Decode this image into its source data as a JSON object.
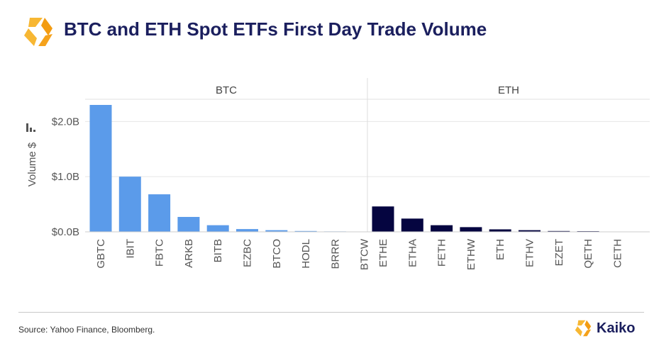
{
  "header": {
    "title": "BTC and ETH Spot ETFs First Day Trade Volume"
  },
  "chart_data": {
    "type": "bar",
    "title": "BTC and ETH Spot ETFs First Day Trade Volume",
    "ylabel": "Volume $",
    "ylim": [
      0,
      2.3
    ],
    "yticks": [
      {
        "value": 0,
        "label": "$0.0B"
      },
      {
        "value": 1,
        "label": "$1.0B"
      },
      {
        "value": 2,
        "label": "$2.0B"
      }
    ],
    "grid": true,
    "panels": [
      {
        "name": "BTC",
        "color": "#5b9bea",
        "categories": [
          "GBTC",
          "IBIT",
          "FBTC",
          "ARKB",
          "BITB",
          "EZBC",
          "BTCO",
          "HODL",
          "BRRR",
          "BTCW"
        ],
        "values": [
          2.3,
          1.0,
          0.68,
          0.27,
          0.12,
          0.05,
          0.03,
          0.015,
          0.008,
          0.004
        ]
      },
      {
        "name": "ETH",
        "color": "#050540",
        "categories": [
          "ETHE",
          "ETHA",
          "FETH",
          "ETHW",
          "ETH",
          "ETHV",
          "EZET",
          "QETH",
          "CETH"
        ],
        "values": [
          0.46,
          0.24,
          0.12,
          0.085,
          0.045,
          0.03,
          0.015,
          0.012,
          0.003
        ]
      }
    ]
  },
  "footer": {
    "source": "Source: Yahoo Finance, Bloomberg.",
    "brand": "Kaiko"
  },
  "colors": {
    "title": "#1b1f5e",
    "logo_orange": "#f5a21b",
    "btc_bar": "#5b9bea",
    "eth_bar": "#050540"
  },
  "icons": {
    "logo": "kaiko-hexagon-icon",
    "axis": "bar-chart-icon"
  }
}
